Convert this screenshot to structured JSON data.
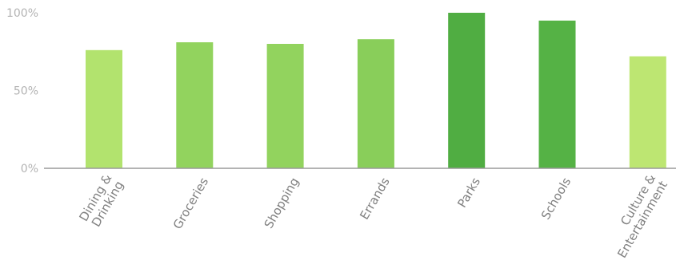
{
  "chart_data": {
    "type": "bar",
    "title": "",
    "xlabel": "",
    "ylabel": "",
    "ylim": [
      0,
      100
    ],
    "y_ticks": [
      {
        "value": 0,
        "label": "0%"
      },
      {
        "value": 50,
        "label": "50%"
      },
      {
        "value": 100,
        "label": "100%"
      }
    ],
    "grid": false,
    "categories": [
      [
        "Dining &",
        "Drinking"
      ],
      [
        "Groceries"
      ],
      [
        "Shopping"
      ],
      [
        "Errands"
      ],
      [
        "Parks"
      ],
      [
        "Schools"
      ],
      [
        "Culture &",
        "Entertainment"
      ]
    ],
    "values": [
      76,
      81,
      80,
      83,
      100,
      95,
      72
    ],
    "colors": [
      "#b2e36e",
      "#92d35e",
      "#92d35e",
      "#89ce5a",
      "#50ad42",
      "#55b245",
      "#bde672"
    ]
  }
}
